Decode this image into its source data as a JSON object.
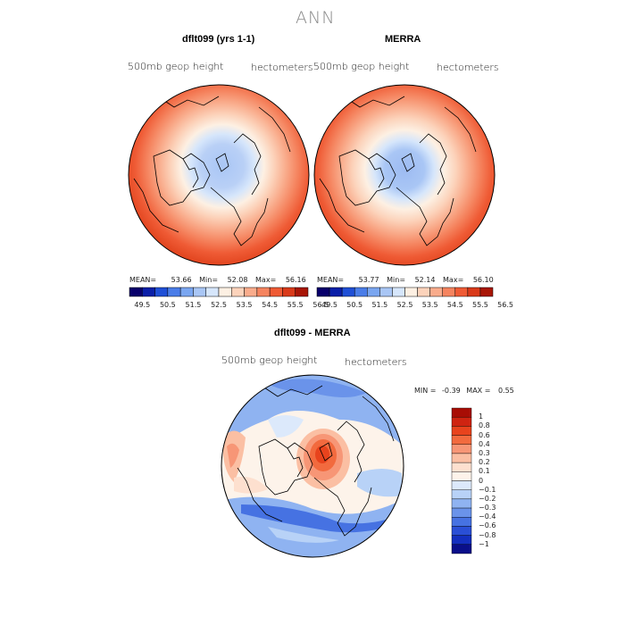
{
  "figure": {
    "title": "ANN"
  },
  "panels": [
    {
      "title": "dflt099 (yrs 1-1)",
      "field_label": "500mb geop height",
      "units": "hectometers",
      "stats": {
        "mean_label": "MEAN=",
        "mean": "53.66",
        "min_label": "Min=",
        "min": "52.08",
        "max_label": "Max=",
        "max": "56.16"
      }
    },
    {
      "title": "MERRA",
      "field_label": "500mb geop height",
      "units": "hectometers",
      "stats": {
        "mean_label": "MEAN=",
        "mean": "53.77",
        "min_label": "Min=",
        "min": "52.14",
        "max_label": "Max=",
        "max": "56.10"
      }
    }
  ],
  "colorbar_abs": {
    "ticks": [
      "49.5",
      "50.5",
      "51.5",
      "52.5",
      "53.5",
      "54.5",
      "55.5",
      "56.5"
    ],
    "colors": [
      "#08006b",
      "#0a1fa8",
      "#1f4fd6",
      "#4a7de8",
      "#7aa6f0",
      "#a9c6f5",
      "#d6e6fb",
      "#fdf0e3",
      "#fcd3bb",
      "#f9ac8c",
      "#f5845f",
      "#ef5b35",
      "#d93a1a",
      "#a81606"
    ]
  },
  "diff_panel": {
    "title": "dflt099 - MERRA",
    "field_label": "500mb geop height",
    "units": "hectometers",
    "min_label": "MIN =",
    "min": "-0.39",
    "max_label": "MAX =",
    "max": "0.55"
  },
  "colorbar_diff": {
    "ticks": [
      "1",
      "0.8",
      "0.6",
      "0.4",
      "0.3",
      "0.2",
      "0.1",
      "0",
      "−0.1",
      "−0.2",
      "−0.3",
      "−0.4",
      "−0.6",
      "−0.8",
      "−1"
    ],
    "colors": [
      "#a80d05",
      "#cf2411",
      "#e8431d",
      "#f26a3e",
      "#f79676",
      "#fbbfa3",
      "#fde0cf",
      "#fdf3ea",
      "#dce9fb",
      "#b8d2f7",
      "#8fb3f1",
      "#6a93ea",
      "#4672e2",
      "#2a4fd6",
      "#142fbf",
      "#0a0f8a"
    ]
  },
  "colors": {
    "warm_outer": "#f26a3e",
    "cool_center": "#a9c6f5"
  }
}
